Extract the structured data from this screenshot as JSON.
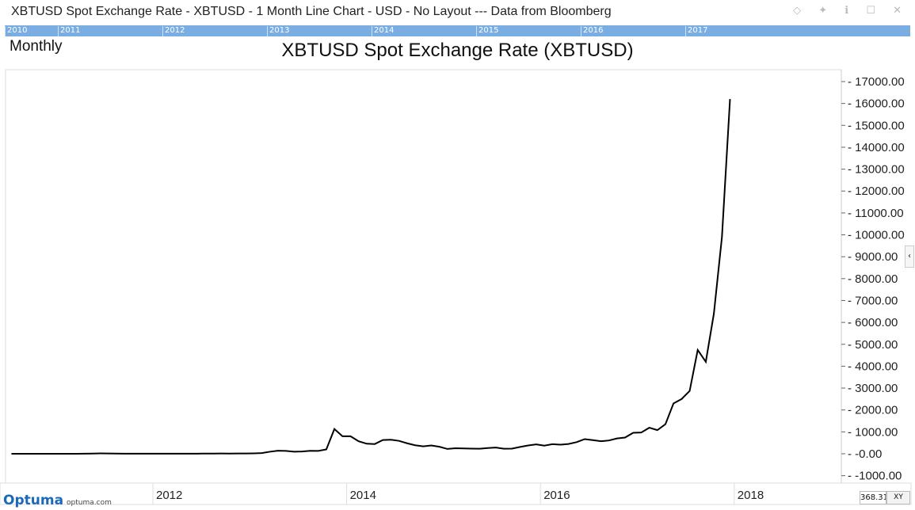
{
  "window": {
    "title": "XBTUSD Spot Exchange Rate  - XBTUSD - 1 Month Line Chart - USD - No Layout --- Data from Bloomberg",
    "controls": "◇ ✦ ℹ ☐ ✕"
  },
  "navigator": {
    "years": [
      "2010",
      "2011",
      "2012",
      "2013",
      "2014",
      "2015",
      "2016",
      "2017"
    ]
  },
  "period_label": "Monthly",
  "logo": {
    "name": "Optuma",
    "url_text": "optuma.com"
  },
  "readout": {
    "value": "368.31",
    "mode": "XY"
  },
  "side_tab_icon": "chevron-left-icon",
  "chart_data": {
    "type": "line",
    "title": "XBTUSD Spot Exchange Rate  (XBTUSD)",
    "start_month": "2010-07",
    "frequency": "monthly",
    "values": [
      0.07,
      0.06,
      0.06,
      0.19,
      0.28,
      0.3,
      0.5,
      0.9,
      0.8,
      3.5,
      8.7,
      16.7,
      13.4,
      8.2,
      5.1,
      3.2,
      3,
      4.7,
      5.5,
      4.9,
      4.9,
      5,
      5.2,
      6.7,
      9.3,
      10,
      12.4,
      11.2,
      12.6,
      13.5,
      20,
      33,
      93,
      139,
      129,
      97,
      106,
      135,
      133,
      198,
      1130,
      800,
      800,
      570,
      460,
      445,
      630,
      640,
      590,
      480,
      390,
      340,
      380,
      320,
      220,
      255,
      245,
      235,
      230,
      263,
      285,
      230,
      236,
      312,
      378,
      430,
      370,
      437,
      416,
      448,
      530,
      670,
      624,
      573,
      608,
      700,
      742,
      960,
      970,
      1190,
      1080,
      1350,
      2300,
      2500,
      2870,
      4740,
      4200,
      6400,
      9900,
      16200
    ],
    "y_ticks": [
      "-1000.00",
      "-0.00",
      "1000.00",
      "2000.00",
      "3000.00",
      "4000.00",
      "5000.00",
      "6000.00",
      "7000.00",
      "8000.00",
      "9000.00",
      "10000.00",
      "11000.00",
      "12000.00",
      "13000.00",
      "14000.00",
      "15000.00",
      "16000.00",
      "17000.00"
    ],
    "ylim": [
      -1000,
      17000
    ],
    "x_ticks": [
      "2012",
      "2014",
      "2016",
      "2018"
    ],
    "y_axis_side": "right",
    "line_color": "#000000"
  }
}
